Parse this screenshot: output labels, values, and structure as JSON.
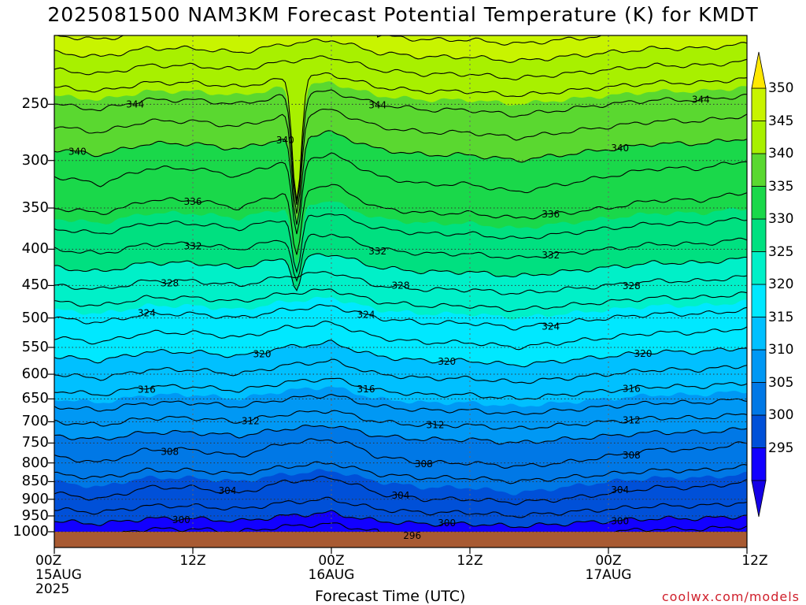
{
  "chart_data": {
    "type": "heatmap",
    "title": "2025081500 NAM3KM Forecast Potential Temperature (K) for KMDT",
    "xlabel": "Forecast Time (UTC)",
    "ylabel": "",
    "x_ticks": [
      {
        "hour": 0,
        "lines": [
          "00Z",
          "15AUG",
          "2025"
        ]
      },
      {
        "hour": 12,
        "lines": [
          "12Z"
        ]
      },
      {
        "hour": 24,
        "lines": [
          "00Z",
          "16AUG"
        ]
      },
      {
        "hour": 36,
        "lines": [
          "12Z"
        ]
      },
      {
        "hour": 48,
        "lines": [
          "00Z",
          "17AUG"
        ]
      },
      {
        "hour": 60,
        "lines": [
          "12Z"
        ]
      }
    ],
    "xlim_hours": [
      0,
      60
    ],
    "y_ticks_hpa": [
      250,
      300,
      350,
      400,
      450,
      500,
      550,
      600,
      650,
      700,
      750,
      800,
      850,
      900,
      950,
      1000
    ],
    "ylim_hpa": [
      200,
      1000
    ],
    "y_scale": "log-pressure",
    "colorbar": {
      "labels": [
        350,
        345,
        340,
        335,
        330,
        325,
        320,
        315,
        310,
        305,
        300,
        295
      ],
      "levels": [
        290,
        295,
        300,
        305,
        310,
        315,
        320,
        325,
        330,
        335,
        340,
        345,
        350,
        355
      ],
      "colors": [
        "#1400e6",
        "#1200ff",
        "#0050d8",
        "#0078e6",
        "#0098f4",
        "#00c0ff",
        "#00e8ff",
        "#00f0c8",
        "#00e080",
        "#1ad84a",
        "#5ad830",
        "#a8f000",
        "#c8f400",
        "#ffe800"
      ]
    },
    "contour_interval_K": 2,
    "contour_labels": [
      {
        "value": 344,
        "hours": [
          7,
          28,
          56
        ]
      },
      {
        "value": 340,
        "hours": [
          2,
          20,
          49
        ]
      },
      {
        "value": 336,
        "hours": [
          12,
          43
        ]
      },
      {
        "value": 332,
        "hours": [
          12,
          28,
          43
        ]
      },
      {
        "value": 328,
        "hours": [
          10,
          30,
          50
        ]
      },
      {
        "value": 324,
        "hours": [
          8,
          27,
          43
        ]
      },
      {
        "value": 320,
        "hours": [
          18,
          34,
          51
        ]
      },
      {
        "value": 316,
        "hours": [
          8,
          27,
          50
        ]
      },
      {
        "value": 312,
        "hours": [
          17,
          33,
          50
        ]
      },
      {
        "value": 308,
        "hours": [
          10,
          32,
          50
        ]
      },
      {
        "value": 304,
        "hours": [
          15,
          30,
          49
        ]
      },
      {
        "value": 300,
        "hours": [
          11,
          34,
          49
        ]
      },
      {
        "value": 296,
        "hours": [
          31
        ]
      }
    ],
    "profile": {
      "hours": [
        0,
        4,
        8,
        12,
        16,
        20,
        24,
        28,
        32,
        36,
        40,
        44,
        48,
        52,
        56,
        60
      ],
      "shift_k": [
        0,
        0.5,
        -0.5,
        -0.5,
        0,
        -1.0,
        -1.5,
        0,
        0.5,
        0.5,
        1.0,
        0.5,
        0,
        -0.5,
        -0.5,
        -1.0
      ],
      "note_dip_hour": 21.0
    },
    "ground": {
      "color": "#a85a32",
      "p_hpa": 1000
    }
  },
  "credit": "coolwx.com/models"
}
